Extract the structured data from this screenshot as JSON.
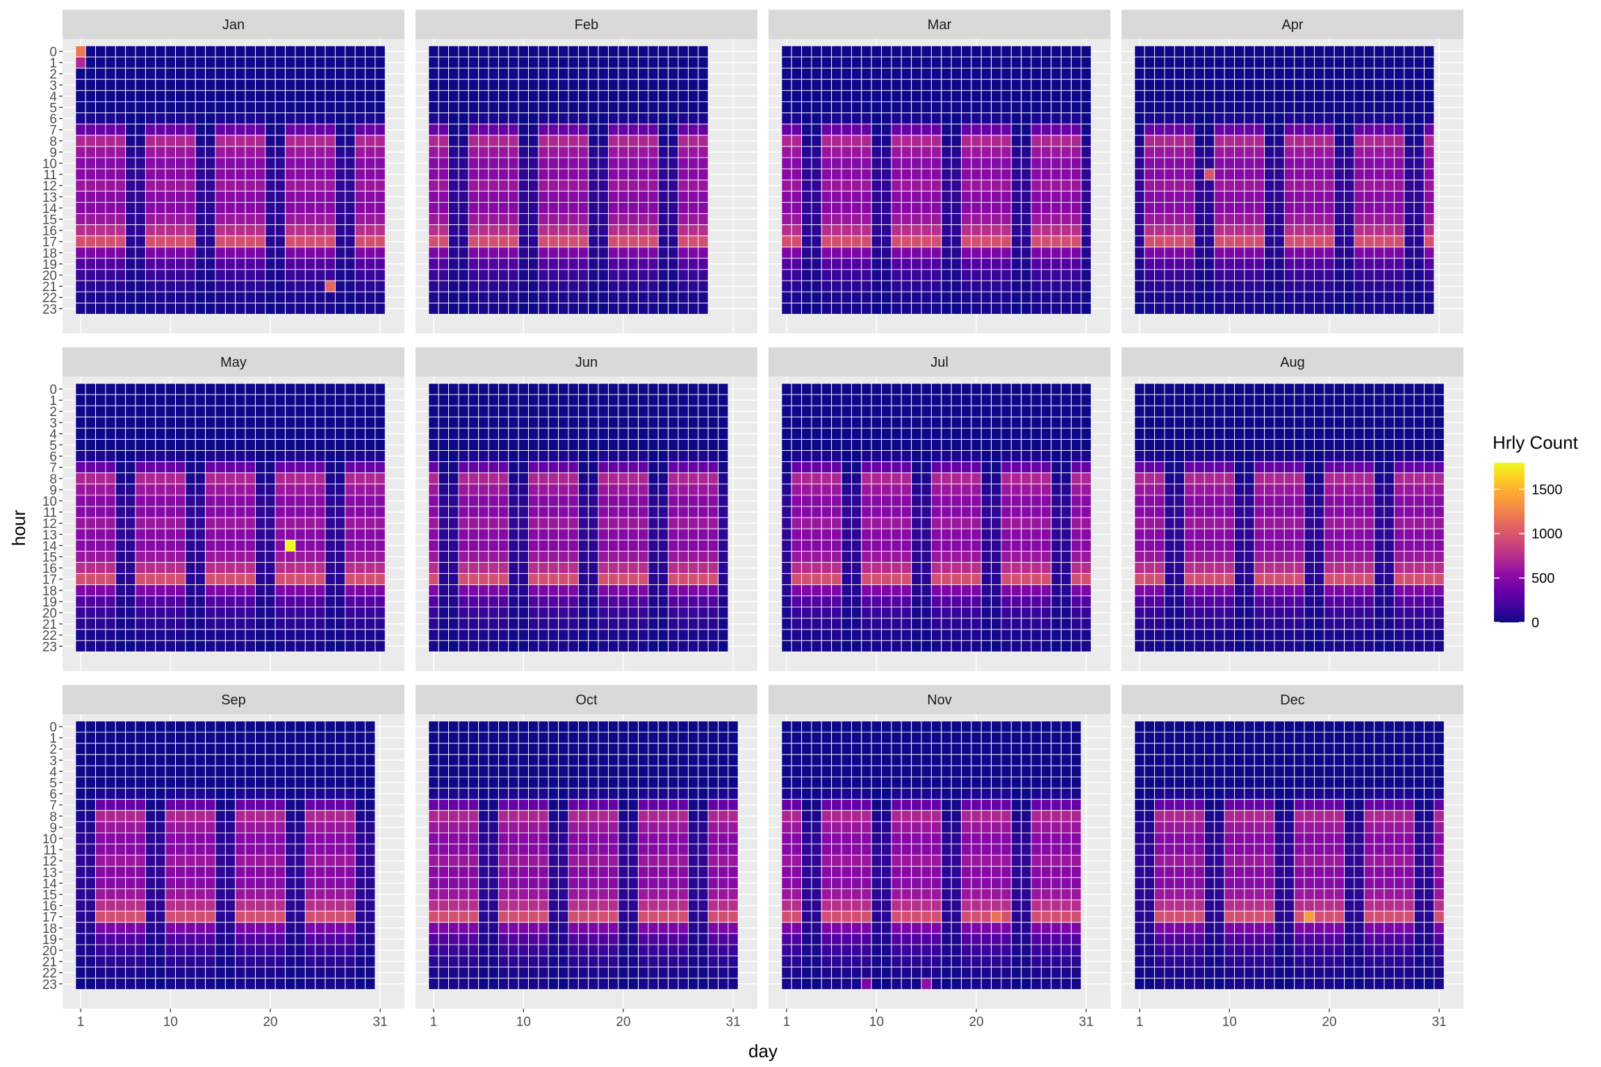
{
  "chart_data": {
    "type": "heatmap",
    "facet_by": "month",
    "facets": [
      "Jan",
      "Feb",
      "Mar",
      "Apr",
      "May",
      "Jun",
      "Jul",
      "Aug",
      "Sep",
      "Oct",
      "Nov",
      "Dec"
    ],
    "days_in_month": [
      31,
      28,
      31,
      30,
      31,
      30,
      31,
      31,
      30,
      31,
      30,
      31
    ],
    "first_weekday": [
      0,
      3,
      3,
      6,
      1,
      4,
      6,
      2,
      5,
      0,
      3,
      5
    ],
    "xlabel": "day",
    "ylabel": "hour",
    "x_ticks": [
      1,
      10,
      20,
      31
    ],
    "y_ticks": [
      0,
      1,
      2,
      3,
      4,
      5,
      6,
      7,
      8,
      9,
      10,
      11,
      12,
      13,
      14,
      15,
      16,
      17,
      18,
      19,
      20,
      21,
      22,
      23
    ],
    "xlim": [
      1,
      31
    ],
    "ylim": [
      0,
      23
    ],
    "weekday_hourly_profile": [
      0,
      0,
      0,
      0,
      0,
      0,
      50,
      350,
      700,
      600,
      500,
      500,
      600,
      500,
      500,
      600,
      750,
      950,
      450,
      250,
      150,
      100,
      50,
      30
    ],
    "weekend_hourly_profile": [
      0,
      0,
      0,
      0,
      0,
      0,
      0,
      20,
      50,
      80,
      100,
      110,
      120,
      110,
      100,
      100,
      100,
      90,
      80,
      60,
      40,
      30,
      20,
      0
    ],
    "outliers": [
      {
        "month": "Jan",
        "day": 1,
        "hour": 0,
        "value": 1200
      },
      {
        "month": "Jan",
        "day": 1,
        "hour": 1,
        "value": 700
      },
      {
        "month": "Jan",
        "day": 26,
        "hour": 21,
        "value": 1100
      },
      {
        "month": "Apr",
        "day": 8,
        "hour": 11,
        "value": 1000
      },
      {
        "month": "May",
        "day": 22,
        "hour": 14,
        "value": 1800
      },
      {
        "month": "Dec",
        "day": 18,
        "hour": 17,
        "value": 1400
      },
      {
        "month": "Nov",
        "day": 22,
        "hour": 17,
        "value": 1150
      },
      {
        "month": "Nov",
        "day": 15,
        "hour": 23,
        "value": 550
      },
      {
        "month": "Nov",
        "day": 9,
        "hour": 23,
        "value": 450
      }
    ],
    "legend": {
      "title": "Hrly Count",
      "breaks": [
        0,
        500,
        1000,
        1500
      ],
      "limits": [
        0,
        1800
      ],
      "palette": "plasma",
      "position": "right"
    },
    "colors": {
      "panel_background": "#ebebeb",
      "strip_background": "#d9d9d9",
      "tile_border": "#ffffff",
      "low": "#0d0887",
      "high": "#f0f921"
    }
  }
}
